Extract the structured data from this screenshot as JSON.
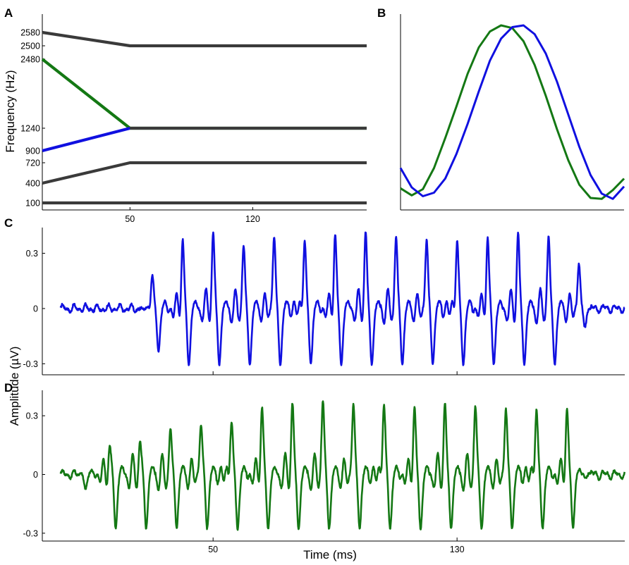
{
  "panel_labels": {
    "a": "A",
    "b": "B",
    "c": "C",
    "d": "D"
  },
  "colors": {
    "blue": "#1010e0",
    "green": "#147814",
    "gray": "#3a3a3a"
  },
  "chart_data": [
    {
      "panel": "A",
      "type": "line",
      "ylabel": "Frequency (Hz)",
      "xlim": [
        0,
        185
      ],
      "x_ticks": [
        "50",
        "120"
      ],
      "x_tick_values": [
        50,
        120
      ],
      "y_ticks": [
        "2580",
        "2500",
        "2480",
        "1240",
        "900",
        "720",
        "400",
        "100"
      ],
      "series": [
        {
          "color": "gray",
          "x": [
            0,
            50,
            185
          ],
          "y": [
            2580,
            2500,
            2500
          ]
        },
        {
          "color": "green",
          "x": [
            0,
            50,
            185
          ],
          "y": [
            2480,
            1240,
            1240
          ]
        },
        {
          "color": "blue",
          "x": [
            0,
            50
          ],
          "y": [
            900,
            1240
          ]
        },
        {
          "color": "gray",
          "x": [
            50,
            185
          ],
          "y": [
            1240,
            1240
          ]
        },
        {
          "color": "gray",
          "x": [
            0,
            50,
            185
          ],
          "y": [
            400,
            720,
            720
          ]
        },
        {
          "color": "gray",
          "x": [
            0,
            50,
            185
          ],
          "y": [
            100,
            100,
            100
          ]
        }
      ]
    },
    {
      "panel": "B",
      "type": "line",
      "xlim": [
        0,
        1
      ],
      "ylim": [
        -1,
        1
      ],
      "series": [
        {
          "color": "green",
          "x": [
            0,
            0.05,
            0.1,
            0.15,
            0.2,
            0.25,
            0.3,
            0.35,
            0.4,
            0.45,
            0.5,
            0.55,
            0.6,
            0.65,
            0.7,
            0.75,
            0.8,
            0.85,
            0.9,
            0.95,
            1.0
          ],
          "y": [
            -0.85,
            -0.93,
            -0.86,
            -0.62,
            -0.28,
            0.08,
            0.45,
            0.75,
            0.93,
            1.0,
            0.97,
            0.82,
            0.55,
            0.2,
            -0.18,
            -0.53,
            -0.81,
            -0.96,
            -0.97,
            -0.87,
            -0.74
          ]
        },
        {
          "color": "blue",
          "x": [
            0,
            0.05,
            0.1,
            0.15,
            0.2,
            0.25,
            0.3,
            0.35,
            0.4,
            0.45,
            0.5,
            0.55,
            0.6,
            0.65,
            0.7,
            0.75,
            0.8,
            0.85,
            0.9,
            0.95,
            1.0
          ],
          "y": [
            -0.62,
            -0.84,
            -0.94,
            -0.9,
            -0.74,
            -0.46,
            -0.12,
            0.25,
            0.6,
            0.85,
            0.98,
            1.0,
            0.9,
            0.68,
            0.36,
            -0.01,
            -0.38,
            -0.7,
            -0.91,
            -0.97,
            -0.83
          ]
        }
      ]
    },
    {
      "panel": "C",
      "type": "line",
      "color": "blue",
      "xlim": [
        -6,
        185
      ],
      "ylim": [
        -0.36,
        0.44
      ],
      "x_ticks": [
        "50",
        "130"
      ],
      "x_tick_values": [
        50,
        130
      ],
      "y_ticks": [
        "0.3",
        "0",
        "-0.3"
      ],
      "y_tick_values": [
        0.3,
        0,
        -0.3
      ],
      "onset_ms": 30,
      "offset_ms": 172,
      "first_peak_ms": 40,
      "period_ms": 10,
      "peak_amplitude": 0.4,
      "trough_amplitude": -0.31,
      "values_sample": [
        0.37,
        0.4,
        0.33,
        0.4,
        0.38,
        0.4,
        0.4,
        0.38,
        0.38,
        0.38,
        0.38,
        0.4,
        0.38,
        0.37
      ]
    },
    {
      "panel": "D",
      "type": "line",
      "color": "green",
      "xlabel": "Time (ms)",
      "xlim": [
        -6,
        185
      ],
      "ylim": [
        -0.34,
        0.43
      ],
      "x_ticks": [
        "50",
        "130"
      ],
      "x_tick_values": [
        50,
        130
      ],
      "y_ticks": [
        "0.3",
        "0",
        "-0.3"
      ],
      "y_tick_values": [
        0.3,
        0,
        -0.3
      ],
      "onset_ms": 10,
      "offset_ms": 172,
      "first_peak_ms": 16,
      "period_ms": 10,
      "peak_amplitude": 0.37,
      "trough_amplitude": -0.28,
      "values_sample": [
        0.14,
        0.15,
        0.22,
        0.26,
        0.28,
        0.34,
        0.35,
        0.37,
        0.37,
        0.37,
        0.34,
        0.35,
        0.34,
        0.34,
        0.34,
        0.33
      ]
    }
  ],
  "shared_ylabel": "Amplitude (µV)"
}
